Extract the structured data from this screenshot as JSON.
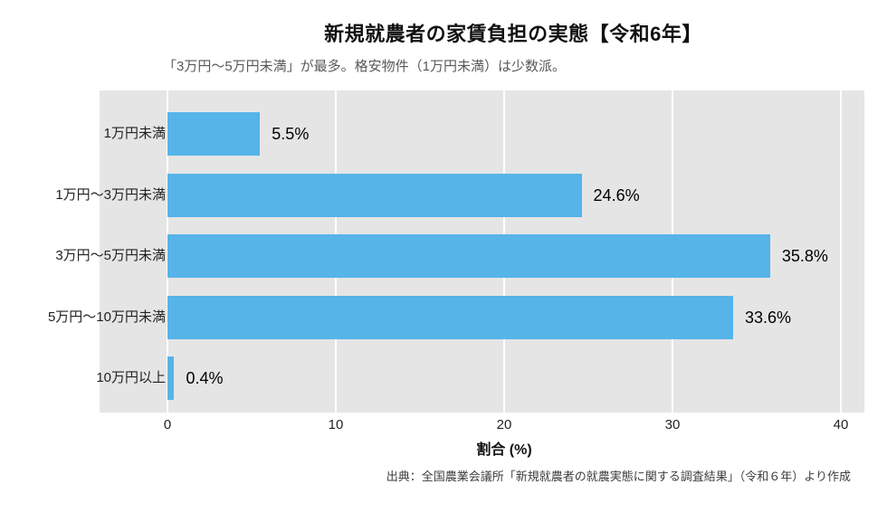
{
  "header": {
    "title": "新規就農者の家賃負担の実態【令和6年】",
    "subtitle": "「3万円〜5万円未満」が最多。格安物件（1万円未満）は少数派。"
  },
  "chart_data": {
    "type": "bar",
    "orientation": "horizontal",
    "title": "新規就農者の家賃負担の実態【令和6年】",
    "subtitle": "「3万円〜5万円未満」が最多。格安物件（1万円未満）は少数派。",
    "categories": [
      "1万円未満",
      "1万円〜3万円未満",
      "3万円〜5万円未満",
      "5万円〜10万円未満",
      "10万円以上"
    ],
    "values": [
      5.5,
      24.6,
      35.8,
      33.6,
      0.4
    ],
    "value_labels": [
      "5.5%",
      "24.6%",
      "35.8%",
      "33.6%",
      "0.4%"
    ],
    "xlabel": "割合 (%)",
    "ylabel": "",
    "xlim": [
      0,
      40
    ],
    "xticks": [
      0,
      10,
      20,
      30,
      40
    ],
    "grid": true,
    "legend": "none",
    "bar_color": "#56b4e9",
    "panel_background": "#e5e5e5",
    "gridline_color": "#ffffff"
  },
  "footer": {
    "source": "出典：全国農業会議所「新規就農者の就農実態に関する調査結果」（令和６年）より作成"
  }
}
